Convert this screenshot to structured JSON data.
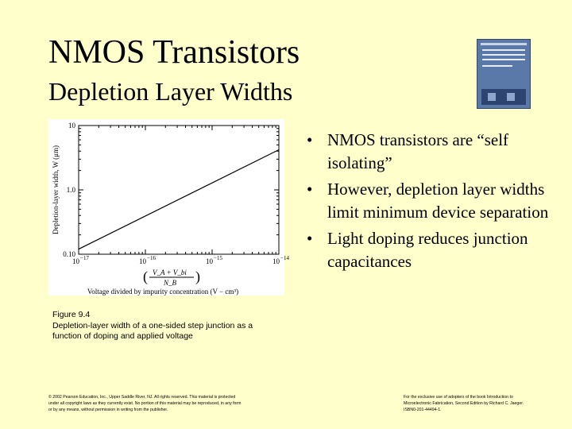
{
  "slide": {
    "title": "NMOS Transistors",
    "subtitle": "Depletion Layer Widths"
  },
  "book_cover_icon": "textbook-cover-icon",
  "bullets": [
    "NMOS transistors are “self isolating”",
    "However, depletion layer widths limit minimum device separation",
    "Light doping reduces junction capacitances"
  ],
  "figure": {
    "caption_line1": "Figure 9.4",
    "caption_line2": "Depletion-layer width of a one-sided step junction as a function of doping and applied voltage"
  },
  "chart_data": {
    "type": "line",
    "x_scale": "log",
    "y_scale": "log",
    "xlim": [
      1e-17,
      1e-14
    ],
    "ylim": [
      0.1,
      10
    ],
    "x_tick_labels": [
      "10",
      "10",
      "10",
      "10"
    ],
    "x_tick_exponents": [
      "−17",
      "−16",
      "−15",
      "−14"
    ],
    "y_tick_labels": [
      "0.10",
      "1.0",
      "10"
    ],
    "xlabel": "Voltage divided by impurity concentration (V − cm³)",
    "ylabel": "Depletion-layer width, W",
    "ylabel_unit": "(μm)",
    "x_formula_num": "V_A + V_bi",
    "x_formula_den": "N_B",
    "series": [
      {
        "x": [
          1e-17,
          1e-14
        ],
        "y": [
          0.12,
          4.2
        ]
      }
    ]
  },
  "footer": {
    "copyright": "© 2002 Pearson Education, Inc., Upper Saddle River, NJ. All rights reserved. This material is protected under all copyright laws as they currently exist. No portion of this material may be reproduced, in any form or by any means, without permission in writing from the publisher.",
    "book_note": "For the exclusive use of adopters of the book Introduction to Microelectronic Fabrication, Second Edition by Richard C. Jaeger. ISBN0-201-44494-1."
  }
}
